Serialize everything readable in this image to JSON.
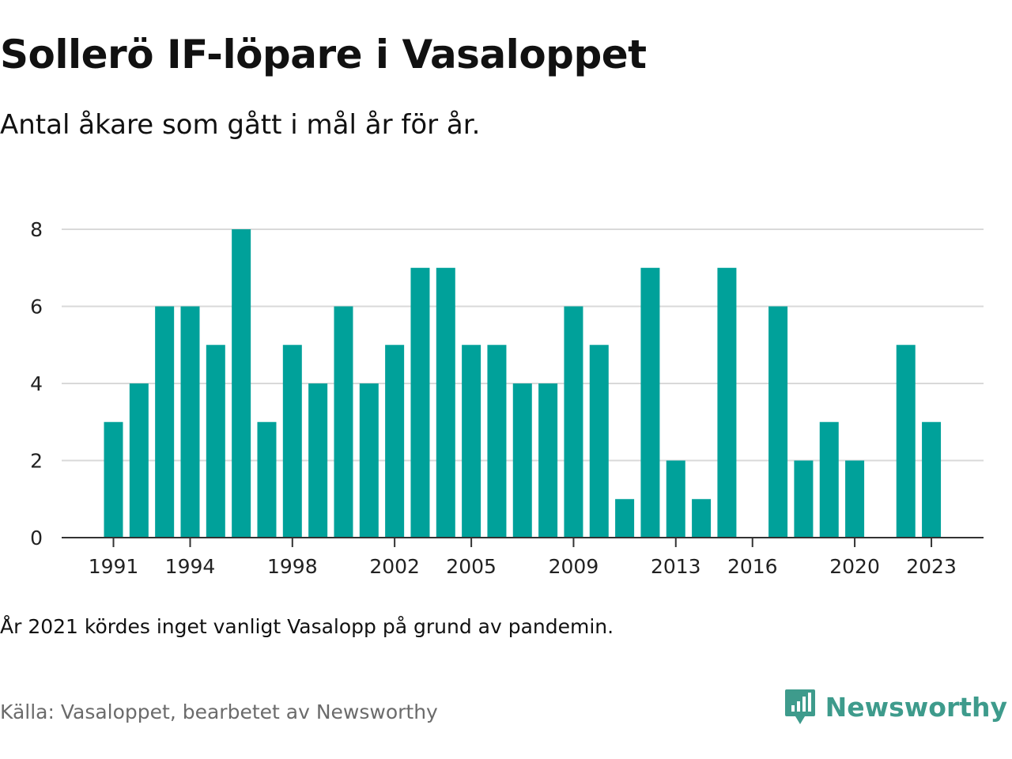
{
  "title": "Sollerö IF-löpare i Vasaloppet",
  "subtitle": "Antal åkare som gått i mål år för år.",
  "note": "År 2021 kördes inget vanligt Vasalopp på grund av pandemin.",
  "source": "Källa: Vasaloppet, bearbetet av Newsworthy",
  "brand": {
    "name": "Newsworthy",
    "icon": "newsworthy-logo-icon",
    "color": "#3e9b8c"
  },
  "colors": {
    "bar": "#00a19a",
    "grid": "#d9d9d9",
    "axis": "#333333"
  },
  "chart_data": {
    "type": "bar",
    "title": "Sollerö IF-löpare i Vasaloppet",
    "subtitle": "Antal åkare som gått i mål år för år.",
    "xlabel": "",
    "ylabel": "",
    "categories": [
      1991,
      1992,
      1993,
      1994,
      1995,
      1996,
      1997,
      1998,
      1999,
      2000,
      2001,
      2002,
      2003,
      2004,
      2005,
      2006,
      2007,
      2008,
      2009,
      2010,
      2011,
      2012,
      2013,
      2014,
      2015,
      2016,
      2017,
      2018,
      2019,
      2020,
      2021,
      2022,
      2023
    ],
    "values": [
      3,
      4,
      6,
      6,
      5,
      8,
      3,
      5,
      4,
      6,
      4,
      5,
      7,
      7,
      5,
      5,
      4,
      4,
      6,
      5,
      1,
      7,
      2,
      1,
      7,
      0,
      6,
      2,
      3,
      2,
      0,
      5,
      3
    ],
    "x_tick_labels": [
      "1991",
      "1994",
      "1998",
      "2002",
      "2005",
      "2009",
      "2013",
      "2016",
      "2020",
      "2023"
    ],
    "y_ticks": [
      0,
      2,
      4,
      6,
      8
    ],
    "ylim": [
      0,
      8
    ],
    "grid": true,
    "legend": "none"
  }
}
